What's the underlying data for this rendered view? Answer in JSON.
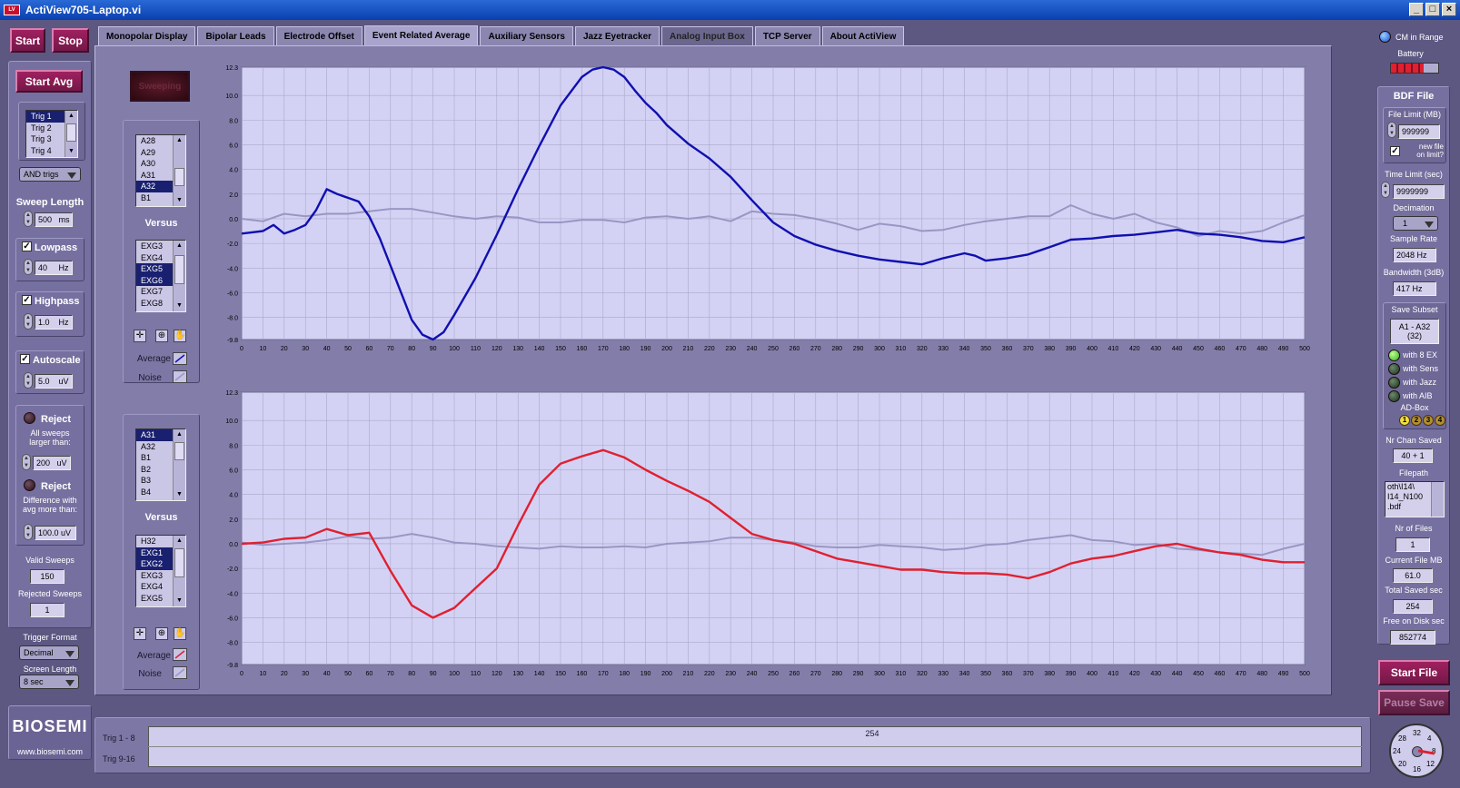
{
  "window": {
    "title": "ActiView705-Laptop.vi"
  },
  "controls": {
    "start": "Start",
    "stop": "Stop",
    "start_avg": "Start Avg",
    "sweeping": "Sweeping"
  },
  "tabs": [
    {
      "label": "Monopolar Display"
    },
    {
      "label": "Bipolar Leads"
    },
    {
      "label": "Electrode Offset"
    },
    {
      "label": "Event Related Average"
    },
    {
      "label": "Auxiliary Sensors"
    },
    {
      "label": "Jazz Eyetracker"
    },
    {
      "label": "Analog Input Box"
    },
    {
      "label": "TCP Server"
    },
    {
      "label": "About ActiView"
    }
  ],
  "left": {
    "triggers": [
      "Trig 1",
      "Trig 2",
      "Trig 3",
      "Trig 4"
    ],
    "trig_mode": "AND trigs",
    "sweep_length_label": "Sweep Length",
    "sweep_length": "500",
    "sweep_unit": "ms",
    "lowpass_label": "Lowpass",
    "lowpass": "40",
    "lowpass_unit": "Hz",
    "highpass_label": "Highpass",
    "highpass": "1.0",
    "highpass_unit": "Hz",
    "autoscale_label": "Autoscale",
    "autoscale": "5.0",
    "autoscale_unit": "uV",
    "reject1_label": "Reject",
    "reject1_desc": [
      "All  sweeps",
      "larger than:"
    ],
    "reject1_value": "200",
    "reject1_unit": "uV",
    "reject2_label": "Reject",
    "reject2_desc": [
      "Difference with",
      "avg more than:"
    ],
    "reject2_value": "100.0 uV",
    "valid_label": "Valid Sweeps",
    "valid": "150",
    "rejected_label": "Rejected Sweeps",
    "rejected": "1",
    "trigger_format_label": "Trigger Format",
    "trigger_format": "Decimal",
    "screen_length_label": "Screen Length",
    "screen_length": "8 sec",
    "logo": "BIOSEMI",
    "website": "www.biosemi.com"
  },
  "erp": {
    "versus_label": "Versus",
    "average_label": "Average",
    "noise_label": "Noise",
    "top_channels": [
      "A28",
      "A29",
      "A30",
      "A31",
      "A32",
      "B1"
    ],
    "top_ref": [
      "EXG3",
      "EXG4",
      "EXG5",
      "EXG6",
      "EXG7",
      "EXG8"
    ],
    "bottom_channels": [
      "A31",
      "A32",
      "B1",
      "B2",
      "B3",
      "B4"
    ],
    "bottom_ref": [
      "H32",
      "EXG1",
      "EXG2",
      "EXG3",
      "EXG4",
      "EXG5"
    ]
  },
  "chart_data": [
    {
      "type": "line",
      "xlim": [
        0,
        500
      ],
      "ylim": [
        -9.8,
        12.3
      ],
      "yticks": [
        12.3,
        10.0,
        8.0,
        6.0,
        4.0,
        2.0,
        0.0,
        -2.0,
        -4.0,
        -6.0,
        -8.0,
        -9.8
      ],
      "xticks": [
        0,
        10,
        20,
        30,
        40,
        50,
        60,
        70,
        80,
        90,
        100,
        110,
        120,
        130,
        140,
        150,
        160,
        170,
        180,
        190,
        200,
        210,
        220,
        230,
        240,
        250,
        260,
        270,
        280,
        290,
        300,
        310,
        320,
        330,
        340,
        350,
        360,
        370,
        380,
        390,
        400,
        410,
        420,
        430,
        440,
        450,
        460,
        470,
        480,
        490,
        500
      ],
      "grid": true,
      "series": [
        {
          "color": "#1010b0",
          "x": [
            0,
            10,
            15,
            20,
            25,
            30,
            35,
            40,
            45,
            50,
            55,
            60,
            65,
            70,
            75,
            80,
            85,
            90,
            95,
            100,
            110,
            120,
            130,
            140,
            150,
            160,
            165,
            170,
            175,
            180,
            185,
            190,
            195,
            200,
            210,
            220,
            230,
            240,
            250,
            260,
            270,
            280,
            290,
            300,
            310,
            320,
            330,
            340,
            345,
            350,
            360,
            370,
            380,
            390,
            400,
            410,
            420,
            430,
            440,
            450,
            460,
            470,
            480,
            490,
            500
          ],
          "y": [
            -1.2,
            -1.0,
            -0.5,
            -1.2,
            -0.9,
            -0.5,
            0.7,
            2.4,
            2.0,
            1.7,
            1.4,
            0.2,
            -1.6,
            -3.8,
            -6.0,
            -8.2,
            -9.4,
            -9.8,
            -9.2,
            -7.8,
            -4.8,
            -1.3,
            2.4,
            5.9,
            9.2,
            11.5,
            12.1,
            12.3,
            12.1,
            11.5,
            10.4,
            9.4,
            8.6,
            7.6,
            6.1,
            4.9,
            3.4,
            1.5,
            -0.3,
            -1.4,
            -2.1,
            -2.6,
            -3.0,
            -3.3,
            -3.5,
            -3.7,
            -3.2,
            -2.8,
            -3.0,
            -3.4,
            -3.2,
            -2.9,
            -2.3,
            -1.7,
            -1.6,
            -1.4,
            -1.3,
            -1.1,
            -0.9,
            -1.2,
            -1.3,
            -1.5,
            -1.8,
            -1.9,
            -1.5
          ]
        },
        {
          "color": "#9a96c4",
          "x": [
            0,
            10,
            20,
            30,
            40,
            50,
            60,
            70,
            80,
            90,
            100,
            110,
            120,
            130,
            140,
            150,
            160,
            170,
            180,
            190,
            200,
            210,
            220,
            230,
            240,
            250,
            260,
            270,
            280,
            290,
            300,
            310,
            320,
            330,
            340,
            350,
            360,
            370,
            380,
            390,
            400,
            410,
            420,
            430,
            440,
            450,
            460,
            470,
            480,
            490,
            500
          ],
          "y": [
            0.0,
            -0.2,
            0.4,
            0.2,
            0.4,
            0.4,
            0.6,
            0.8,
            0.8,
            0.5,
            0.2,
            0.0,
            0.2,
            0.1,
            -0.3,
            -0.3,
            -0.1,
            -0.1,
            -0.3,
            0.1,
            0.2,
            0.0,
            0.2,
            -0.2,
            0.6,
            0.4,
            0.3,
            0.0,
            -0.4,
            -0.9,
            -0.4,
            -0.6,
            -1.0,
            -0.9,
            -0.5,
            -0.2,
            0.0,
            0.2,
            0.2,
            1.1,
            0.4,
            0.0,
            0.4,
            -0.3,
            -0.7,
            -1.4,
            -1.0,
            -1.2,
            -1.0,
            -0.3,
            0.3
          ]
        }
      ]
    },
    {
      "type": "line",
      "xlim": [
        0,
        500
      ],
      "ylim": [
        -9.8,
        12.3
      ],
      "yticks": [
        12.3,
        10.0,
        8.0,
        6.0,
        4.0,
        2.0,
        0.0,
        -2.0,
        -4.0,
        -6.0,
        -8.0,
        -9.8
      ],
      "xticks": [
        0,
        10,
        20,
        30,
        40,
        50,
        60,
        70,
        80,
        90,
        100,
        110,
        120,
        130,
        140,
        150,
        160,
        170,
        180,
        190,
        200,
        210,
        220,
        230,
        240,
        250,
        260,
        270,
        280,
        290,
        300,
        310,
        320,
        330,
        340,
        350,
        360,
        370,
        380,
        390,
        400,
        410,
        420,
        430,
        440,
        450,
        460,
        470,
        480,
        490,
        500
      ],
      "grid": true,
      "series": [
        {
          "color": "#e02030",
          "x": [
            0,
            10,
            20,
            30,
            40,
            50,
            60,
            70,
            80,
            90,
            100,
            110,
            120,
            130,
            140,
            150,
            160,
            170,
            180,
            190,
            200,
            210,
            220,
            230,
            240,
            250,
            260,
            270,
            280,
            290,
            300,
            310,
            320,
            330,
            340,
            350,
            360,
            370,
            380,
            390,
            400,
            410,
            420,
            430,
            440,
            450,
            460,
            470,
            480,
            490,
            500
          ],
          "y": [
            0.0,
            0.1,
            0.4,
            0.5,
            1.2,
            0.7,
            0.9,
            -2.2,
            -5.0,
            -6.0,
            -5.2,
            -3.6,
            -2.0,
            1.5,
            4.8,
            6.5,
            7.1,
            7.6,
            7.0,
            6.0,
            5.1,
            4.3,
            3.4,
            2.1,
            0.8,
            0.3,
            0.0,
            -0.6,
            -1.2,
            -1.5,
            -1.8,
            -2.1,
            -2.1,
            -2.3,
            -2.4,
            -2.4,
            -2.5,
            -2.8,
            -2.3,
            -1.6,
            -1.2,
            -1.0,
            -0.6,
            -0.2,
            0.0,
            -0.4,
            -0.7,
            -0.9,
            -1.3,
            -1.5,
            -1.5
          ]
        },
        {
          "color": "#9a96c4",
          "x": [
            0,
            10,
            20,
            30,
            40,
            50,
            60,
            70,
            80,
            90,
            100,
            110,
            120,
            130,
            140,
            150,
            160,
            170,
            180,
            190,
            200,
            210,
            220,
            230,
            240,
            250,
            260,
            270,
            280,
            290,
            300,
            310,
            320,
            330,
            340,
            350,
            360,
            370,
            380,
            390,
            400,
            410,
            420,
            430,
            440,
            450,
            460,
            470,
            480,
            490,
            500
          ],
          "y": [
            0.1,
            -0.1,
            0.0,
            0.1,
            0.3,
            0.6,
            0.4,
            0.5,
            0.8,
            0.5,
            0.1,
            0.0,
            -0.2,
            -0.3,
            -0.4,
            -0.2,
            -0.3,
            -0.3,
            -0.2,
            -0.3,
            0.0,
            0.1,
            0.2,
            0.5,
            0.5,
            0.3,
            0.1,
            -0.2,
            -0.3,
            -0.3,
            -0.1,
            -0.2,
            -0.3,
            -0.5,
            -0.4,
            -0.1,
            0.0,
            0.3,
            0.5,
            0.7,
            0.3,
            0.2,
            -0.1,
            0.0,
            -0.4,
            -0.5,
            -0.7,
            -0.8,
            -0.9,
            -0.4,
            0.0
          ]
        }
      ]
    }
  ],
  "right": {
    "cm_range": "CM in Range",
    "battery": "Battery",
    "bdf_title": "BDF File",
    "file_limit_label": "File Limit (MB)",
    "file_limit": "999999",
    "new_file_label": [
      "new file",
      "on limit?"
    ],
    "time_limit_label": "Time Limit (sec)",
    "time_limit": "9999999",
    "decimation_label": "Decimation",
    "decimation": "1",
    "sample_rate_label": "Sample Rate",
    "sample_rate": "2048  Hz",
    "bandwidth_label": "Bandwidth (3dB)",
    "bandwidth": "417   Hz",
    "save_subset_label": "Save Subset",
    "save_subset": [
      "A1 - A32",
      "(32)"
    ],
    "with_8ex": "with  8 EX",
    "with_sens": "with Sens",
    "with_jazz": "with Jazz",
    "with_aib": "with AIB",
    "adbox_label": "AD-Box",
    "adbox": [
      "1",
      "2",
      "3",
      "4"
    ],
    "nr_chan_label": "Nr Chan Saved",
    "nr_chan": "40 + 1",
    "filepath_label": "Filepath",
    "filepath": [
      "oth\\I14\\",
      "I14_N100",
      ".bdf"
    ],
    "nr_files_label": "Nr of Files",
    "nr_files": "1",
    "current_mb_label": "Current File MB",
    "current_mb": "61.0",
    "total_sec_label": "Total Saved sec",
    "total_sec": "254",
    "free_disk_label": "Free on Disk sec",
    "free_disk": "852774",
    "start_file": "Start File",
    "pause_save": "Pause Save",
    "dial": [
      "32",
      "4",
      "8",
      "12",
      "16",
      "20",
      "24",
      "28"
    ]
  },
  "trigger_bar": {
    "row1": "Trig 1 - 8",
    "row2": "Trig 9-16",
    "marker": "254"
  }
}
